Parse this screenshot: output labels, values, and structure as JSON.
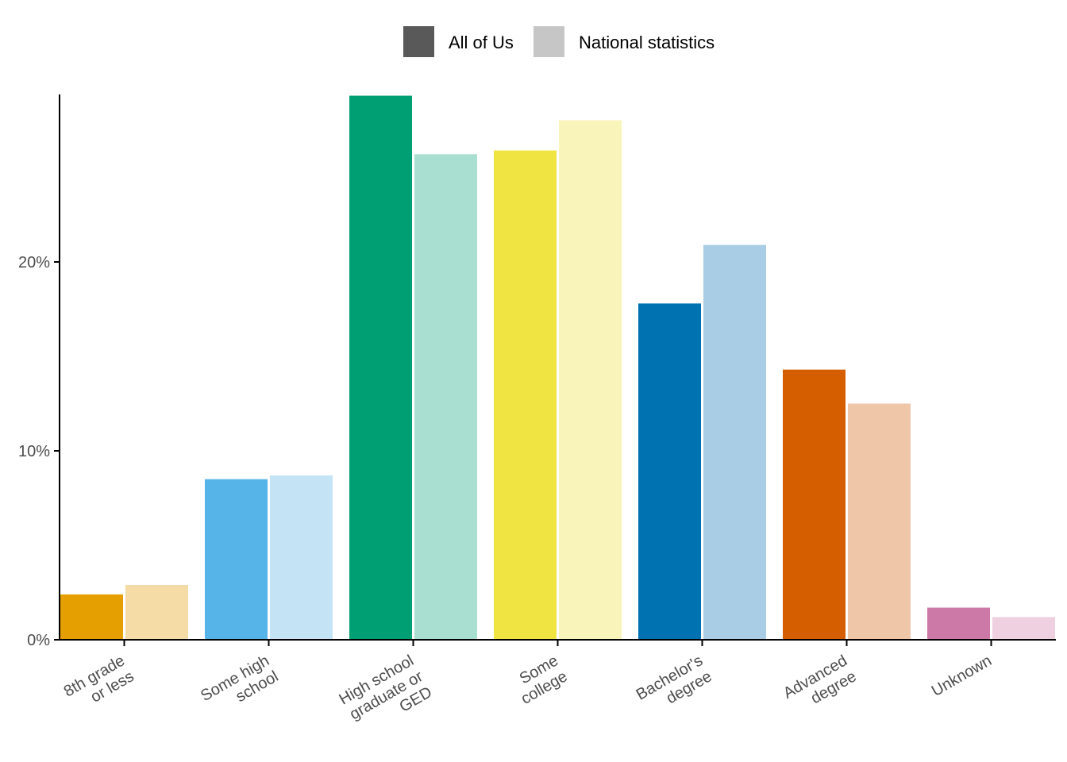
{
  "chart_data": {
    "type": "bar",
    "categories": [
      "8th grade\nor less",
      "Some high\nschool",
      "High school\ngraduate or\nGED",
      "Some\ncollege",
      "Bachelor's\ndegree",
      "Advanced\ndegree",
      "Unknown"
    ],
    "series": [
      {
        "name": "All of Us",
        "values": [
          2.4,
          8.5,
          28.8,
          25.9,
          17.8,
          14.3,
          1.7
        ]
      },
      {
        "name": "National statistics",
        "values": [
          2.9,
          8.7,
          25.7,
          27.5,
          20.9,
          12.5,
          1.2
        ]
      }
    ],
    "category_colors": [
      {
        "all_of_us": "#E69F00",
        "national": "#F5DBA5"
      },
      {
        "all_of_us": "#56B4E9",
        "national": "#C4E4F6"
      },
      {
        "all_of_us": "#009E73",
        "national": "#A9DFD1"
      },
      {
        "all_of_us": "#F0E442",
        "national": "#F9F4BA"
      },
      {
        "all_of_us": "#0072B2",
        "national": "#A9CDE4"
      },
      {
        "all_of_us": "#D55E00",
        "national": "#F0C6A8"
      },
      {
        "all_of_us": "#CC79A7",
        "national": "#EED0E1"
      }
    ],
    "legend_colors": {
      "all_of_us": "#595959",
      "national": "#C6C6C6"
    },
    "y_ticks": [
      0,
      10,
      20
    ],
    "y_tick_labels": [
      "0%",
      "10%",
      "20%"
    ],
    "ylim": [
      0,
      28.8
    ],
    "legend_position": "top",
    "grid": false,
    "title": "",
    "xlabel": "",
    "ylabel": ""
  }
}
